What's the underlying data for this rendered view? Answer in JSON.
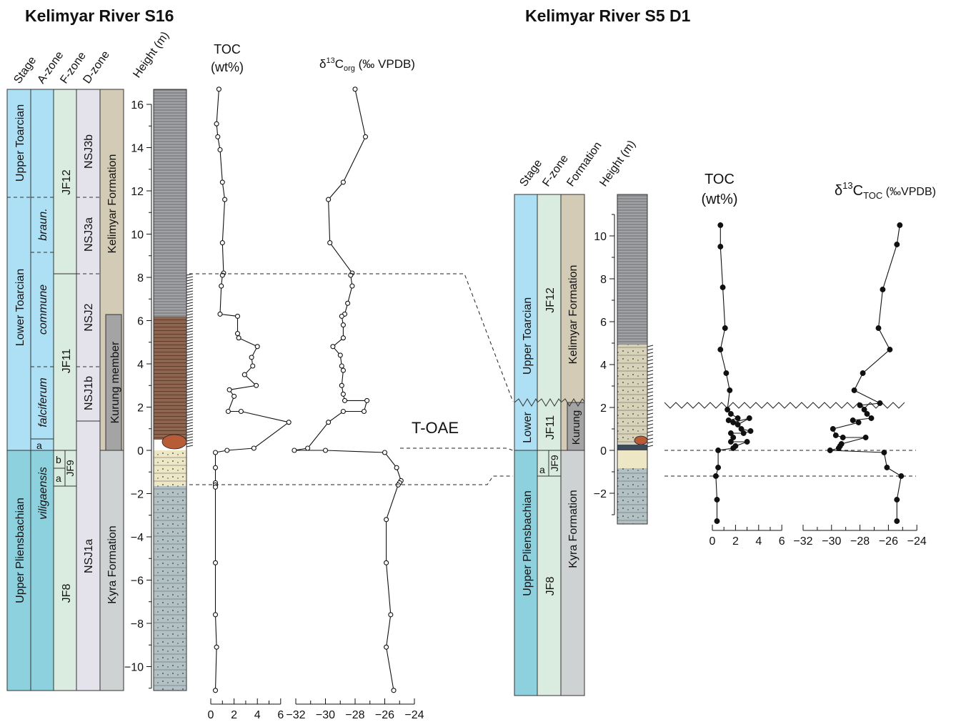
{
  "colors": {
    "stage_upper_toarcian": "#aee0f5",
    "stage_lower_toarcian": "#aee0f5",
    "stage_pliensbachian": "#8dd0de",
    "zone_green": "#d9ecdf",
    "zone_lilac": "#e4e2ea",
    "form_kelimyar": "#d4cbb6",
    "form_kurung": "#a4a4a4",
    "form_kyra": "#cfd2d2",
    "litho_grey": "#a1a2a5",
    "litho_brown": "#8c6450",
    "litho_yellow": "#ede7c6",
    "litho_bluegrey": "#b2c2c4",
    "litho_tan": "#d8d2b8"
  },
  "s16": {
    "title": "Kelimyar River S16",
    "col_headers": {
      "stage": "Stage",
      "azone": "A-zone",
      "fzone": "F-zone",
      "dzone": "D-zone",
      "height": "Height (m)"
    },
    "stage_labels": {
      "upper_toarcian": "Upper Toarcian",
      "lower_toarcian": "Lower Toarcian",
      "upper_pliensbachian": "Upper Pliensbachian"
    },
    "azone_labels": {
      "braun": "braun.",
      "commune": "commune",
      "falciferum": "falciferum",
      "a": "a",
      "viligaensis": "viligaensis"
    },
    "fzone_labels": {
      "jf12": "JF12",
      "jf11": "JF11",
      "jf9": "JF9",
      "b": "b",
      "a": "a",
      "jf8": "JF8"
    },
    "dzone_labels": {
      "nsj3b": "NSJ3b",
      "nsj3a": "NSJ3a",
      "nsj2": "NSJ2",
      "nsj1b": "NSJ1b",
      "nsj1a": "NSJ1a"
    },
    "formation_labels": {
      "kelimyar": "Kelimyar Formation",
      "kurung": "Kurung member",
      "kyra": "Kyra Formation"
    },
    "height_ticks": [
      "16",
      "14",
      "12",
      "10",
      "8",
      "6",
      "4",
      "2",
      "0",
      "−2",
      "−4",
      "−6",
      "−8",
      "−10"
    ],
    "toc_header": [
      "TOC",
      "(wt%)"
    ],
    "d13c_header": {
      "delta": "δ",
      "sup": "13",
      "c": "C",
      "sub": "org",
      "unit": " (‰ VPDB)"
    },
    "toc_ticks": [
      "0",
      "2",
      "4",
      "6"
    ],
    "d13c_ticks": [
      "−32",
      "−30",
      "−28",
      "−26",
      "−24"
    ]
  },
  "s5": {
    "title": "Kelimyar River S5 D1",
    "col_headers": {
      "stage": "Stage",
      "fzone": "F-zone",
      "formation": "Formation",
      "height": "Height (m)"
    },
    "stage_labels": {
      "upper_toarcian": "Upper Toarcian",
      "lower": "Lower",
      "upper_pliensbachian": "Upper Pliensbachian"
    },
    "fzone_labels": {
      "jf12": "JF12",
      "jf11": "JF11",
      "a": "a",
      "jf9": "JF9",
      "jf8": "JF8"
    },
    "formation_labels": {
      "kelimyar": "Kelimyar Formation",
      "kurung": "Kurung",
      "kyra": "Kyra Formation"
    },
    "height_ticks": [
      "10",
      "8",
      "6",
      "4",
      "2",
      "0",
      "−2"
    ],
    "toc_header": [
      "TOC",
      "(wt%)"
    ],
    "d13c_header": {
      "delta": "δ",
      "sup": "13",
      "c": "C",
      "sub": "TOC",
      "unit": " (‰VPDB)"
    },
    "toc_ticks": [
      "0",
      "2",
      "4",
      "6"
    ],
    "d13c_ticks": [
      "−32",
      "−30",
      "−28",
      "−26",
      "−24"
    ]
  },
  "annotation": "T-OAE",
  "chart_data": [
    {
      "type": "line",
      "title": "Kelimyar River S16",
      "xlabel": "TOC (wt%)",
      "ylabel": "Height (m)",
      "xlim": [
        0,
        6
      ],
      "ylim": [
        -11.2,
        16.8
      ],
      "series": [
        {
          "name": "TOC",
          "points": [
            [
              0.7,
              16.7
            ],
            [
              0.5,
              15.1
            ],
            [
              0.6,
              14.5
            ],
            [
              0.8,
              13.9
            ],
            [
              1.0,
              12.4
            ],
            [
              1.2,
              11.6
            ],
            [
              1.0,
              9.6
            ],
            [
              1.1,
              8.2
            ],
            [
              1.0,
              8.1
            ],
            [
              0.9,
              7.6
            ],
            [
              0.8,
              6.3
            ],
            [
              2.3,
              6.2
            ],
            [
              2.3,
              5.4
            ],
            [
              2.4,
              5.2
            ],
            [
              4.0,
              4.8
            ],
            [
              3.5,
              4.3
            ],
            [
              3.6,
              3.9
            ],
            [
              2.9,
              3.5
            ],
            [
              3.9,
              3.0
            ],
            [
              1.6,
              2.8
            ],
            [
              2.0,
              2.5
            ],
            [
              1.5,
              1.8
            ],
            [
              2.6,
              1.8
            ],
            [
              6.7,
              1.3
            ],
            [
              3.7,
              0.1
            ],
            [
              1.4,
              0.0
            ],
            [
              0.4,
              -0.1
            ],
            [
              0.4,
              -0.8
            ],
            [
              0.4,
              -1.5
            ],
            [
              0.4,
              -1.6
            ],
            [
              0.4,
              -1.7
            ],
            [
              0.4,
              -5.2
            ],
            [
              0.4,
              -7.6
            ],
            [
              0.5,
              -9.1
            ],
            [
              0.4,
              -11.1
            ]
          ]
        }
      ]
    },
    {
      "type": "line",
      "title": "Kelimyar River S16",
      "xlabel": "δ13Corg (‰ VPDB)",
      "ylabel": "Height (m)",
      "xlim": [
        -32,
        -24
      ],
      "ylim": [
        -11.2,
        16.8
      ],
      "series": [
        {
          "name": "δ13Corg",
          "points": [
            [
              -28.0,
              16.7
            ],
            [
              -27.3,
              14.5
            ],
            [
              -28.8,
              12.4
            ],
            [
              -29.8,
              11.6
            ],
            [
              -29.7,
              9.6
            ],
            [
              -28.2,
              8.2
            ],
            [
              -28.3,
              8.1
            ],
            [
              -28.2,
              7.6
            ],
            [
              -28.5,
              6.8
            ],
            [
              -28.7,
              6.3
            ],
            [
              -28.9,
              6.2
            ],
            [
              -28.8,
              5.8
            ],
            [
              -28.8,
              5.2
            ],
            [
              -29.5,
              4.8
            ],
            [
              -29.0,
              4.4
            ],
            [
              -28.9,
              3.9
            ],
            [
              -28.8,
              3.7
            ],
            [
              -28.9,
              3.0
            ],
            [
              -28.8,
              2.6
            ],
            [
              -28.7,
              2.3
            ],
            [
              -27.2,
              2.3
            ],
            [
              -27.4,
              1.8
            ],
            [
              -28.8,
              1.8
            ],
            [
              -29.8,
              1.3
            ],
            [
              -31.2,
              0.1
            ],
            [
              -32.1,
              0.0
            ],
            [
              -30.0,
              0.0
            ],
            [
              -26.0,
              -0.1
            ],
            [
              -25.2,
              -0.8
            ],
            [
              -24.9,
              -1.4
            ],
            [
              -25.0,
              -1.5
            ],
            [
              -25.1,
              -1.6
            ],
            [
              -25.9,
              -3.2
            ],
            [
              -25.9,
              -5.2
            ],
            [
              -25.6,
              -7.6
            ],
            [
              -25.9,
              -9.1
            ],
            [
              -25.4,
              -11.1
            ]
          ]
        }
      ]
    },
    {
      "type": "line",
      "title": "Kelimyar River S5 D1",
      "xlabel": "TOC (wt%)",
      "ylabel": "Height (m)",
      "xlim": [
        0,
        6
      ],
      "ylim": [
        -3.4,
        11.8
      ],
      "series": [
        {
          "name": "TOC",
          "points": [
            [
              0.7,
              10.5
            ],
            [
              0.7,
              9.5
            ],
            [
              0.9,
              7.6
            ],
            [
              1.1,
              5.7
            ],
            [
              0.7,
              4.7
            ],
            [
              1.2,
              3.6
            ],
            [
              1.5,
              2.8
            ],
            [
              1.3,
              1.9
            ],
            [
              1.6,
              1.7
            ],
            [
              2.2,
              1.5
            ],
            [
              1.4,
              1.4
            ],
            [
              1.8,
              1.3
            ],
            [
              3.2,
              1.5
            ],
            [
              2.2,
              1.2
            ],
            [
              2.5,
              1.0
            ],
            [
              3.3,
              0.9
            ],
            [
              2.7,
              0.8
            ],
            [
              1.6,
              0.8
            ],
            [
              1.8,
              0.6
            ],
            [
              1.6,
              0.4
            ],
            [
              3.0,
              0.4
            ],
            [
              2.0,
              0.2
            ],
            [
              1.8,
              0.1
            ],
            [
              0.5,
              0.0
            ],
            [
              0.5,
              -0.8
            ],
            [
              0.3,
              -1.2
            ],
            [
              0.4,
              -2.3
            ],
            [
              0.4,
              -3.3
            ]
          ]
        }
      ]
    },
    {
      "type": "line",
      "title": "Kelimyar River S5 D1",
      "xlabel": "δ13CTOC (‰VPDB)",
      "ylabel": "Height (m)",
      "xlim": [
        -32,
        -24
      ],
      "ylim": [
        -3.4,
        11.8
      ],
      "series": [
        {
          "name": "δ13CTOC",
          "points": [
            [
              -25.2,
              10.5
            ],
            [
              -25.4,
              9.6
            ],
            [
              -26.4,
              7.5
            ],
            [
              -26.7,
              5.7
            ],
            [
              -25.9,
              4.7
            ],
            [
              -27.8,
              3.6
            ],
            [
              -28.4,
              2.8
            ],
            [
              -26.6,
              2.2
            ],
            [
              -28.0,
              2.1
            ],
            [
              -27.7,
              1.9
            ],
            [
              -27.5,
              1.7
            ],
            [
              -27.2,
              1.5
            ],
            [
              -28.5,
              1.4
            ],
            [
              -28.1,
              1.3
            ],
            [
              -29.9,
              1.0
            ],
            [
              -29.7,
              0.7
            ],
            [
              -29.2,
              0.6
            ],
            [
              -27.6,
              0.6
            ],
            [
              -29.3,
              0.3
            ],
            [
              -29.4,
              0.2
            ],
            [
              -29.5,
              0.1
            ],
            [
              -30.1,
              0.0
            ],
            [
              -26.3,
              -0.1
            ],
            [
              -26.1,
              -0.8
            ],
            [
              -25.1,
              -1.2
            ],
            [
              -25.4,
              -2.3
            ],
            [
              -25.4,
              -3.3
            ]
          ]
        }
      ]
    }
  ]
}
